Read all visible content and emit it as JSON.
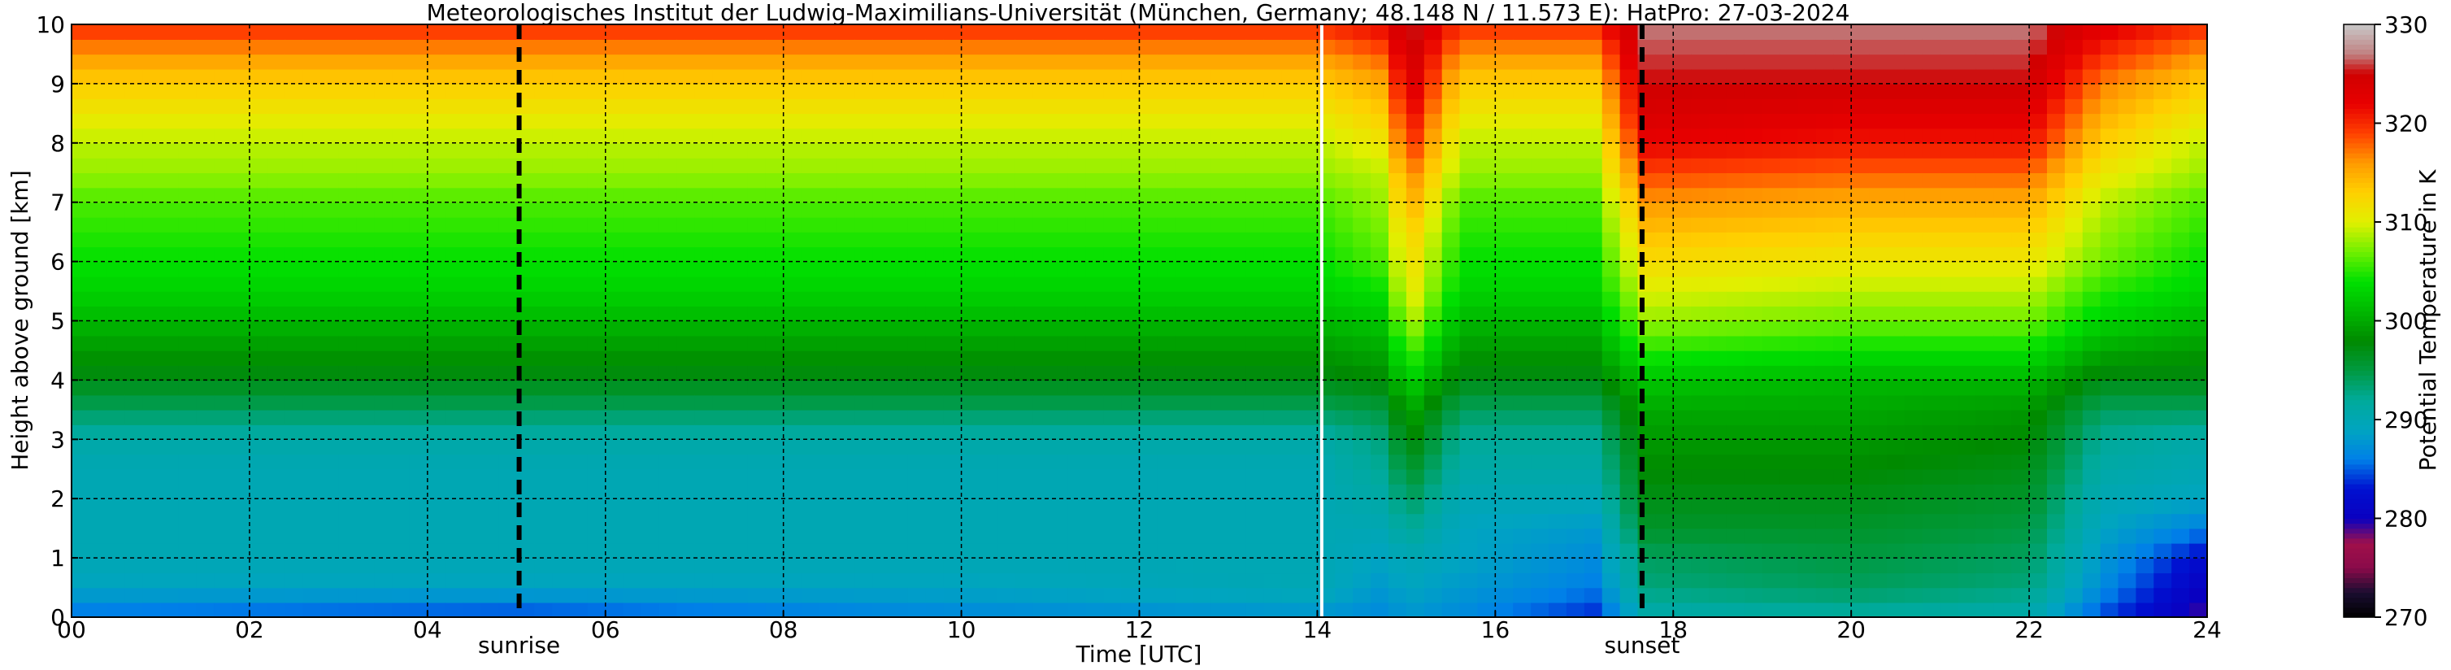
{
  "chart_data": {
    "type": "heatmap",
    "title": "Meteorologisches Institut der Ludwig-Maximilians-Universität (München, Germany; 48.148 N / 11.573 E):    HatPro: 27-03-2024",
    "xlabel": "Time [UTC]",
    "ylabel": "Height above ground [km]",
    "colorbar_label": "Potential Temperature in K",
    "xlim": [
      0,
      24
    ],
    "ylim": [
      0,
      10
    ],
    "clim": [
      270,
      330
    ],
    "x_ticks": [
      "00",
      "02",
      "04",
      "06",
      "08",
      "10",
      "12",
      "14",
      "16",
      "18",
      "20",
      "22",
      "24"
    ],
    "y_ticks": [
      "0",
      "1",
      "2",
      "3",
      "4",
      "5",
      "6",
      "7",
      "8",
      "9",
      "10"
    ],
    "colorbar_ticks": [
      "270",
      "280",
      "290",
      "300",
      "310",
      "320",
      "330"
    ],
    "grid": true,
    "events": [
      {
        "label": "sunrise",
        "time": 5.03
      },
      {
        "label": "sunset",
        "time": 17.65
      }
    ],
    "data_gap_time": 14.05,
    "heights_km": [
      0.1,
      0.5,
      1,
      1.5,
      2,
      2.5,
      3,
      3.5,
      4,
      4.5,
      5,
      5.5,
      6,
      6.5,
      7,
      7.5,
      8,
      8.5,
      9,
      9.5,
      10
    ],
    "profiles": [
      {
        "time": 0,
        "theta": [
          286,
          289,
          290,
          290,
          290,
          290,
          291,
          294,
          297,
          299,
          301,
          303,
          304,
          305,
          306,
          308,
          309,
          311,
          313,
          316,
          320
        ]
      },
      {
        "time": 5,
        "theta": [
          285,
          289,
          290,
          290,
          290,
          290,
          291,
          294,
          297,
          299,
          301,
          303,
          304,
          305,
          306,
          308,
          309,
          311,
          313,
          316,
          320
        ]
      },
      {
        "time": 10,
        "theta": [
          287,
          289,
          290,
          290,
          290,
          290,
          291,
          294,
          297,
          299,
          301,
          303,
          304,
          305,
          306,
          308,
          309,
          311,
          313,
          316,
          320
        ]
      },
      {
        "time": 14,
        "theta": [
          288,
          290,
          290,
          290,
          290,
          290,
          291,
          294,
          297,
          299,
          301,
          303,
          304,
          305,
          306,
          308,
          309,
          311,
          313,
          316,
          320
        ]
      },
      {
        "time": 14.7,
        "theta": [
          287,
          288,
          289,
          290,
          291,
          292,
          293,
          295,
          298,
          300,
          302,
          304,
          306,
          307,
          308,
          309,
          311,
          313,
          315,
          318,
          322
        ]
      },
      {
        "time": 15.05,
        "theta": [
          288,
          289,
          290,
          292,
          294,
          296,
          298,
          300,
          303,
          306,
          309,
          311,
          312,
          313,
          315,
          317,
          320,
          322,
          324,
          325,
          326
        ]
      },
      {
        "time": 15.6,
        "theta": [
          287,
          288,
          289,
          289,
          290,
          291,
          292,
          294,
          297,
          299,
          301,
          303,
          304,
          305,
          306,
          308,
          309,
          311,
          313,
          316,
          320
        ]
      },
      {
        "time": 17.1,
        "theta": [
          284,
          286,
          287,
          288,
          290,
          291,
          292,
          294,
          297,
          299,
          301,
          303,
          304,
          305,
          306,
          308,
          309,
          311,
          313,
          316,
          320
        ]
      },
      {
        "time": 17.7,
        "theta": [
          291,
          293,
          294,
          296,
          297,
          298,
          299,
          300,
          302,
          305,
          308,
          310,
          312,
          314,
          316,
          319,
          322,
          324,
          325,
          326,
          327
        ]
      },
      {
        "time": 20,
        "theta": [
          292,
          294,
          295,
          296,
          297,
          298,
          299,
          300,
          301,
          304,
          307,
          309,
          311,
          313,
          315,
          318,
          321,
          323,
          325,
          326,
          327
        ]
      },
      {
        "time": 22,
        "theta": [
          291,
          293,
          294,
          295,
          296,
          297,
          298,
          299,
          301,
          304,
          307,
          309,
          311,
          313,
          315,
          318,
          321,
          323,
          325,
          326,
          327
        ]
      },
      {
        "time": 22.8,
        "theta": [
          285,
          287,
          288,
          289,
          290,
          291,
          292,
          294,
          297,
          300,
          303,
          305,
          307,
          308,
          309,
          311,
          313,
          315,
          317,
          320,
          323
        ]
      },
      {
        "time": 24,
        "theta": [
          279,
          280,
          282,
          286,
          289,
          290,
          291,
          294,
          297,
          299,
          301,
          303,
          304,
          305,
          306,
          308,
          309,
          311,
          313,
          316,
          320
        ]
      }
    ],
    "colormap": [
      {
        "value": 270,
        "color": "#000000"
      },
      {
        "value": 272.5,
        "color": "#1a0d30"
      },
      {
        "value": 275,
        "color": "#8a0a4a"
      },
      {
        "value": 277.5,
        "color": "#a0104a"
      },
      {
        "value": 280,
        "color": "#0a00c0"
      },
      {
        "value": 283,
        "color": "#0010d0"
      },
      {
        "value": 286,
        "color": "#0080e8"
      },
      {
        "value": 289,
        "color": "#00a5c0"
      },
      {
        "value": 292,
        "color": "#00aa9a"
      },
      {
        "value": 295,
        "color": "#009a40"
      },
      {
        "value": 298,
        "color": "#008a00"
      },
      {
        "value": 301,
        "color": "#00b800"
      },
      {
        "value": 304,
        "color": "#00e000"
      },
      {
        "value": 307,
        "color": "#70f000"
      },
      {
        "value": 310,
        "color": "#e0f000"
      },
      {
        "value": 313,
        "color": "#ffd000"
      },
      {
        "value": 316,
        "color": "#ff9a00"
      },
      {
        "value": 319,
        "color": "#ff4000"
      },
      {
        "value": 322,
        "color": "#e80000"
      },
      {
        "value": 325,
        "color": "#d00000"
      },
      {
        "value": 327,
        "color": "#c08080"
      },
      {
        "value": 330,
        "color": "#c8c8c8"
      }
    ]
  }
}
